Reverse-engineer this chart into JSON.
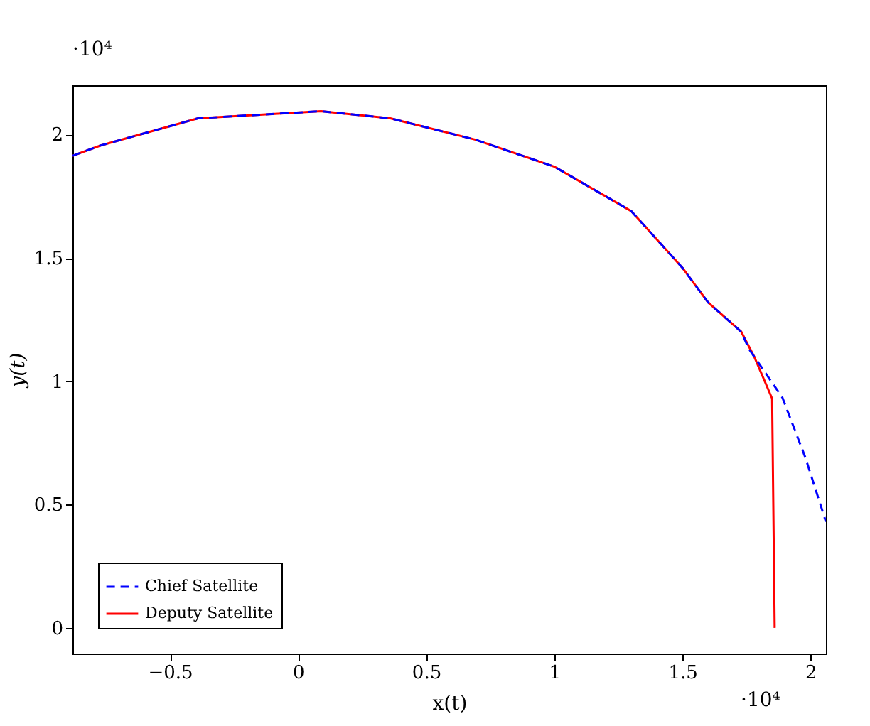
{
  "chart_data": {
    "type": "line",
    "xlabel": "x(t)",
    "ylabel": "y(t)",
    "annotations": [
      "·10⁴",
      "·10⁴"
    ],
    "xlim": [
      -0.88,
      2.06
    ],
    "ylim": [
      -0.104,
      2.2
    ],
    "xticks": [
      -0.5,
      0,
      0.5,
      1,
      1.5,
      2
    ],
    "yticks": [
      0,
      0.5,
      1,
      1.5,
      2
    ],
    "grid": false,
    "legend": "bottom left",
    "marker": "none",
    "series": [
      {
        "name": "Chief Satellite",
        "color": "#0000ff",
        "line_style": "dashed",
        "x": [
          -0.88,
          -0.77,
          -0.39,
          0.09,
          0.36,
          0.69,
          1.0,
          1.3,
          1.5,
          1.6,
          1.73,
          1.76,
          1.89,
          1.98,
          2.06
        ],
        "values": [
          1.914,
          1.956,
          2.066,
          2.095,
          2.066,
          1.98,
          1.87,
          1.69,
          1.46,
          1.32,
          1.2,
          1.13,
          0.934,
          0.69,
          0.43
        ]
      },
      {
        "name": "Deputy Satellite",
        "color": "#ff0000",
        "line_style": "solid",
        "x": [
          -0.88,
          -0.77,
          -0.39,
          0.09,
          0.36,
          0.69,
          1.0,
          1.3,
          1.5,
          1.6,
          1.73,
          1.78,
          1.85,
          1.86
        ],
        "values": [
          1.914,
          1.956,
          2.066,
          2.095,
          2.066,
          1.98,
          1.87,
          1.69,
          1.46,
          1.32,
          1.2,
          1.1,
          0.93,
          0
        ]
      }
    ]
  }
}
